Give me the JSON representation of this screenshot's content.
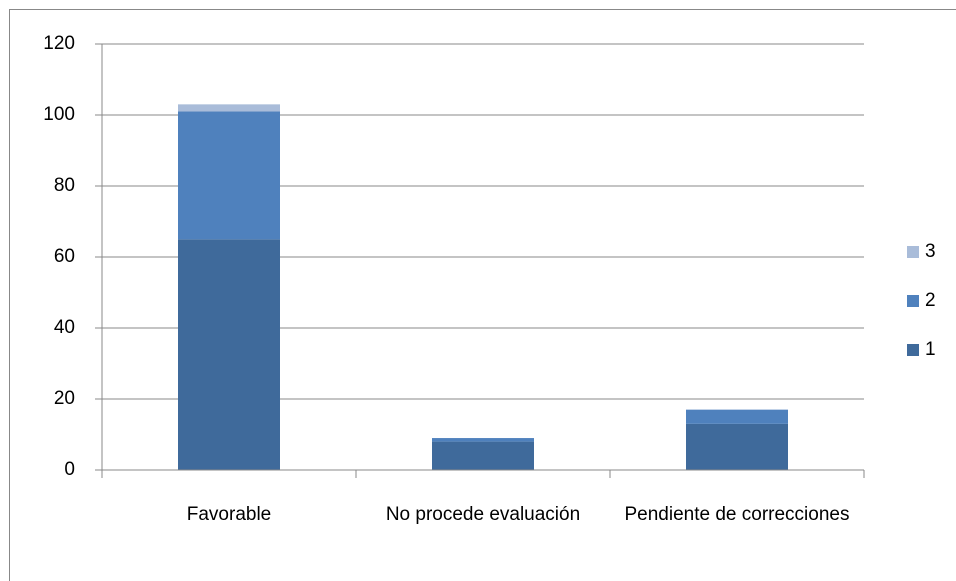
{
  "chart_data": {
    "type": "bar",
    "stacked": true,
    "categories": [
      "Favorable",
      "No procede evaluación",
      "Pendiente de correcciones"
    ],
    "series": [
      {
        "name": "1",
        "color": "#3f6a9b",
        "values": [
          65,
          8,
          13
        ]
      },
      {
        "name": "2",
        "color": "#4f81bd",
        "values": [
          36,
          1,
          4
        ]
      },
      {
        "name": "3",
        "color": "#a9bcd9",
        "values": [
          2,
          0,
          0
        ]
      }
    ],
    "ylim": [
      0,
      120
    ],
    "yticks": [
      0,
      20,
      40,
      60,
      80,
      100,
      120
    ],
    "grid": true,
    "legend": "right"
  }
}
